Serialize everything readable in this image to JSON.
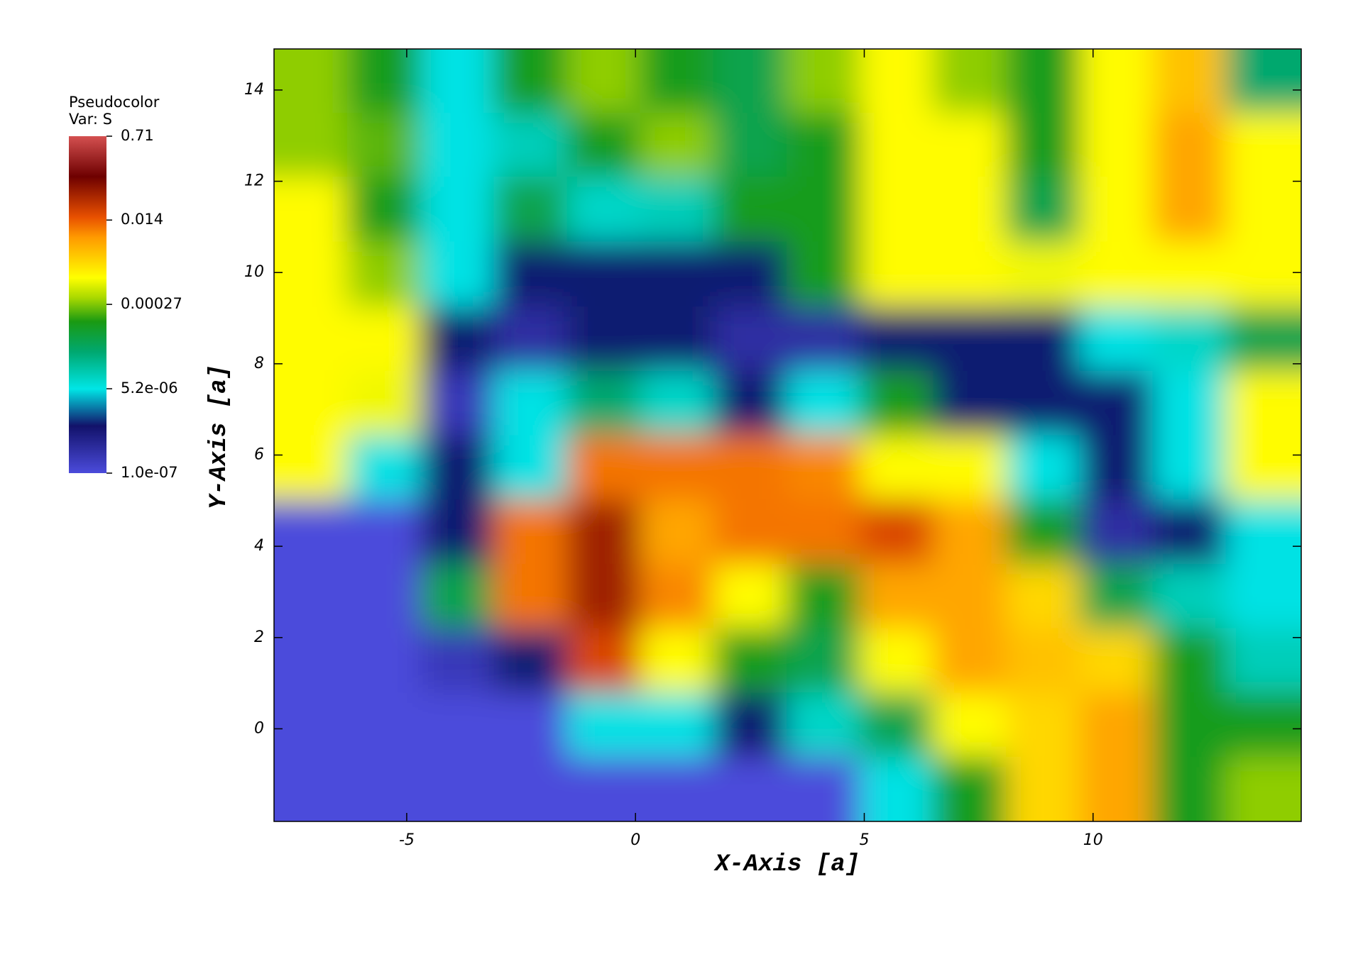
{
  "chart_data": {
    "type": "heatmap",
    "legend_title": "Pseudocolor",
    "legend_subtitle": "Var: S",
    "x_label": "X-Axis [a]",
    "y_label": "Y-Axis [a]",
    "xlim": [
      -7.9,
      14.55
    ],
    "ylim": [
      -2.03,
      14.9
    ],
    "xticks": [
      -5,
      0,
      5,
      10
    ],
    "yticks": [
      0,
      2,
      4,
      6,
      8,
      10,
      12,
      14
    ],
    "clim": [
      1e-07,
      0.71
    ],
    "cscale": "log",
    "cticks": [
      {
        "value": 1e-07,
        "label": "1.0e-07"
      },
      {
        "value": 5.2e-06,
        "label": "5.2e-06"
      },
      0.00027,
      0.014,
      0.71
    ],
    "colormap": [
      {
        "at": 0,
        "color": "#4b4bdb"
      },
      {
        "at": 0.14,
        "color": "#12126a"
      },
      {
        "at": 0.25,
        "color": "#00e6e6"
      },
      {
        "at": 0.36,
        "color": "#00a870"
      },
      {
        "at": 0.45,
        "color": "#1a9a12"
      },
      {
        "at": 0.52,
        "color": "#a8d800"
      },
      {
        "at": 0.58,
        "color": "#ffff00"
      },
      {
        "at": 0.7,
        "color": "#ff9a00"
      },
      {
        "at": 0.76,
        "color": "#e85000"
      },
      {
        "at": 0.88,
        "color": "#6e0000"
      },
      {
        "at": 1,
        "color": "#d45050"
      }
    ],
    "x": [
      -7.1,
      -5.5,
      -3.9,
      -2.3,
      -0.7,
      0.9,
      2.5,
      4.1,
      5.7,
      7.3,
      8.9,
      10.5,
      12.1,
      13.7
    ],
    "y": [
      14.2,
      12.8,
      11.4,
      9.96,
      8.55,
      7.14,
      5.73,
      4.32,
      2.91,
      1.5,
      0.09,
      -1.32
    ],
    "z": [
      [
        0.0003,
        0.0001,
        5e-06,
        0.0001,
        0.0003,
        0.0001,
        5e-05,
        0.0003,
        0.001,
        0.0003,
        0.0001,
        0.001,
        0.003,
        3e-05
      ],
      [
        0.0003,
        0.0002,
        5e-06,
        1e-05,
        0.0001,
        0.0003,
        5e-05,
        0.0001,
        0.001,
        0.001,
        0.0001,
        0.001,
        0.005,
        0.001
      ],
      [
        0.001,
        0.0001,
        5e-06,
        5e-05,
        8e-06,
        1e-05,
        0.0001,
        0.0001,
        0.001,
        0.001,
        5e-05,
        0.001,
        0.005,
        0.001
      ],
      [
        0.001,
        0.0003,
        5e-06,
        1e-06,
        1e-06,
        1e-06,
        1e-06,
        0.0001,
        0.001,
        0.001,
        0.0008,
        0.001,
        0.001,
        0.001
      ],
      [
        0.001,
        0.001,
        1e-06,
        3e-07,
        1e-06,
        1e-06,
        3e-07,
        3e-07,
        1e-06,
        1e-06,
        1e-06,
        5e-06,
        8e-06,
        5e-05
      ],
      [
        0.001,
        0.0008,
        2e-07,
        5e-06,
        3e-05,
        8e-06,
        1e-06,
        5e-06,
        0.0001,
        1e-06,
        1e-06,
        1e-06,
        5e-06,
        0.001
      ],
      [
        0.001,
        5e-06,
        1e-06,
        5e-06,
        0.01,
        0.01,
        0.01,
        0.008,
        0.001,
        0.001,
        5e-06,
        1e-06,
        5e-06,
        0.001
      ],
      [
        1e-07,
        1e-07,
        1e-06,
        0.01,
        0.05,
        0.005,
        0.01,
        0.01,
        0.02,
        0.005,
        0.0001,
        3e-07,
        1e-06,
        5e-06
      ],
      [
        1e-07,
        1e-07,
        5e-05,
        0.01,
        0.05,
        0.008,
        0.001,
        0.0001,
        0.005,
        0.005,
        0.002,
        5e-05,
        1e-05,
        5e-06
      ],
      [
        1e-07,
        1e-07,
        2e-07,
        1e-06,
        0.02,
        0.001,
        0.0001,
        5e-05,
        0.001,
        0.005,
        0.003,
        0.002,
        0.0001,
        1e-05
      ],
      [
        1e-07,
        1e-07,
        1e-07,
        1e-07,
        5e-06,
        5e-06,
        1e-06,
        8e-06,
        5e-05,
        0.001,
        0.002,
        0.005,
        0.0001,
        0.0001
      ],
      [
        1e-07,
        1e-07,
        1e-07,
        1e-07,
        1e-07,
        1e-07,
        1e-07,
        1e-07,
        5e-06,
        0.0001,
        0.002,
        0.005,
        0.0001,
        0.0003
      ]
    ]
  }
}
